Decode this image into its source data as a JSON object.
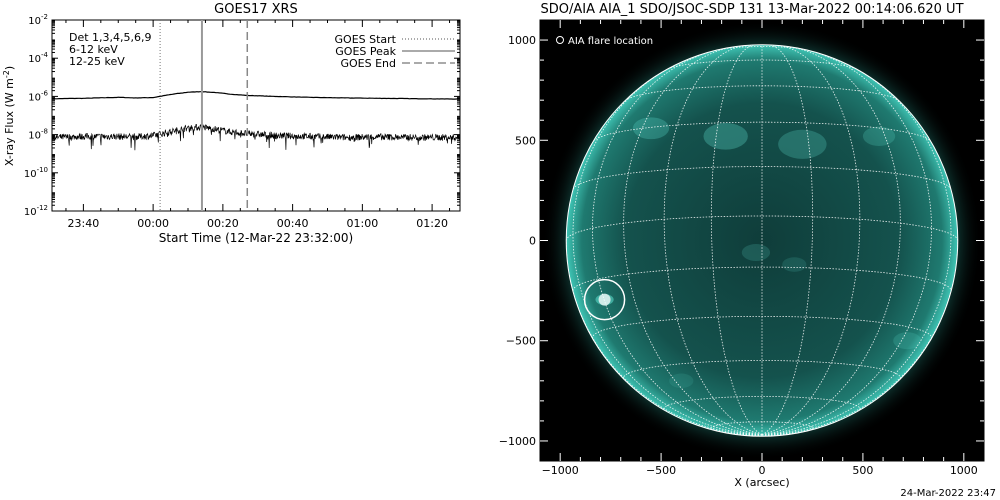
{
  "chart_data": [
    {
      "type": "line",
      "title": "GOES17 XRS",
      "xlabel": "Start Time (12-Mar-22 23:32:00)",
      "ylabel_text": "X-ray Flux (W m",
      "ylabel_sup": "-2",
      "ylabel_close": ")",
      "log_y": true,
      "ylim_exp": [
        -12,
        -2
      ],
      "xlim_minutes": [
        -29,
        88
      ],
      "xtick_labels": [
        "23:40",
        "00:00",
        "00:20",
        "00:40",
        "01:00",
        "01:20"
      ],
      "xtick_minutes": [
        -20,
        0,
        20,
        40,
        60,
        80
      ],
      "ytick_base": "10",
      "ytick_exps": [
        "-12",
        "-10",
        "-8",
        "-6",
        "-4",
        "-2"
      ],
      "ytick_values": [
        -12,
        -10,
        -8,
        -6,
        -4,
        -2
      ],
      "legend_left": {
        "detectors": "Det 1,3,4,5,6,9",
        "band_low": "6-12 keV",
        "band_high": "12-25 keV",
        "band_low_color": "#c800c8",
        "band_high_color": "#00d000"
      },
      "legend_right": [
        {
          "label": "GOES Start",
          "style": "dotted"
        },
        {
          "label": "GOES Peak",
          "style": "solid"
        },
        {
          "label": "GOES End",
          "style": "dashed"
        }
      ],
      "markers_minutes": {
        "start": 2,
        "peak": 14,
        "end": 27
      },
      "series": [
        {
          "name": "6-12 keV",
          "x_minutes": [
            -28,
            -20,
            -10,
            -5,
            0,
            5,
            10,
            14,
            18,
            22,
            27,
            35,
            45,
            55,
            65,
            75,
            88
          ],
          "log10_flux": [
            -6.12,
            -6.1,
            -6.05,
            -6.08,
            -6.06,
            -5.9,
            -5.78,
            -5.75,
            -5.8,
            -5.88,
            -5.95,
            -6.0,
            -6.05,
            -6.08,
            -6.1,
            -6.12,
            -6.14
          ]
        },
        {
          "name": "12-25 keV",
          "x_minutes": [
            -28,
            -20,
            -10,
            -5,
            0,
            5,
            10,
            14,
            18,
            22,
            27,
            35,
            45,
            55,
            65,
            75,
            88
          ],
          "log10_flux": [
            -8.15,
            -8.1,
            -8.1,
            -8.12,
            -8.05,
            -7.85,
            -7.65,
            -7.6,
            -7.72,
            -7.85,
            -7.95,
            -8.05,
            -8.1,
            -8.15,
            -8.12,
            -8.15,
            -8.15
          ]
        }
      ]
    },
    {
      "type": "image",
      "title": "SDO/AIA AIA_1 SDO/JSOC-SDP 131 13-Mar-2022 00:14:06.620 UT",
      "xlabel": "X (arcsec)",
      "xlim": [
        -1100,
        1100
      ],
      "ylim": [
        -1100,
        1100
      ],
      "xtick_values": [
        -1000,
        -500,
        0,
        500,
        1000
      ],
      "xtick_labels": [
        "−1000",
        "−500",
        "0",
        "500",
        "1000"
      ],
      "ytick_values": [
        -1000,
        -500,
        0,
        500,
        1000
      ],
      "ytick_labels": [
        "−1000",
        "−500",
        "0",
        "500",
        "1000"
      ],
      "legend": "AIA flare location",
      "flare_location_arcsec": [
        -780,
        -295
      ],
      "solar_radius_arcsec": 970,
      "disk_color": "#1c6a63",
      "limb_color": "#3fc4b4",
      "grid_color": "#ffffff"
    }
  ],
  "footer_timestamp": "24-Mar-2022 23:47"
}
